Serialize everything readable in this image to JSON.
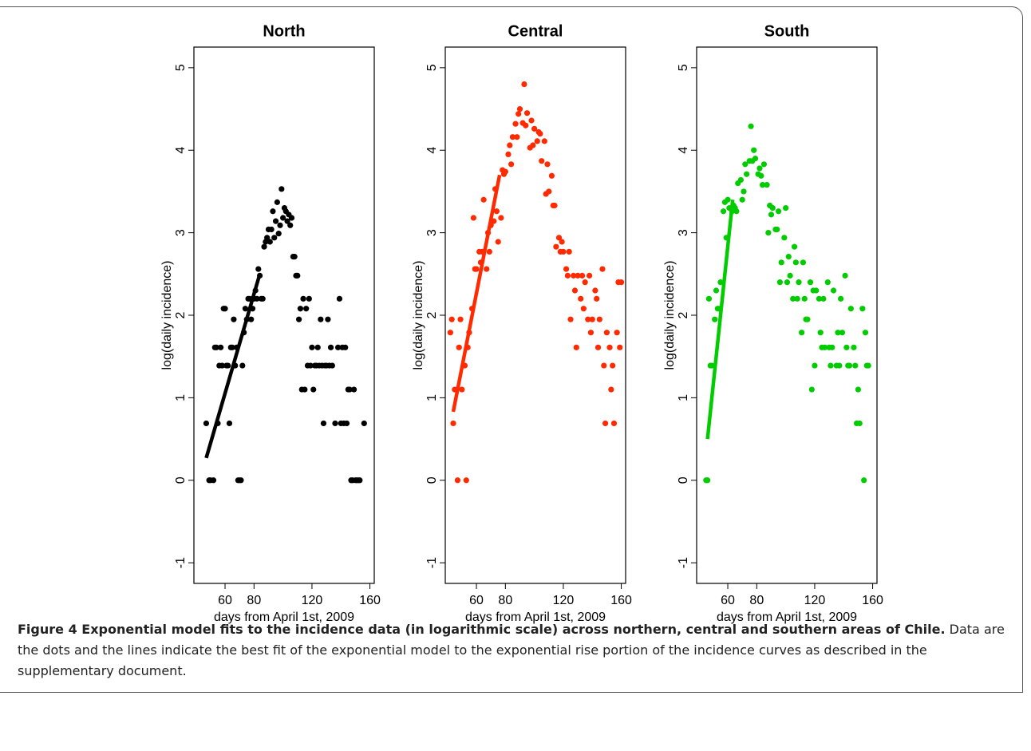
{
  "chart_data": [
    {
      "type": "scatter",
      "title": "North",
      "xlabel": "days from April 1st, 2009",
      "ylabel": "log(daily incidence)",
      "xlim": [
        38.5,
        163
      ],
      "ylim": [
        -1.25,
        5.25
      ],
      "xticks": [
        60,
        80,
        120,
        160
      ],
      "yticks": [
        -1,
        0,
        1,
        2,
        3,
        4,
        5
      ],
      "color": "#000000",
      "x": [
        47,
        49,
        50,
        52,
        53,
        54,
        55,
        56,
        57,
        58,
        59,
        60,
        61,
        62,
        63,
        64,
        65,
        66,
        67,
        68,
        69,
        70,
        71,
        72,
        73,
        74,
        75,
        76,
        77,
        78,
        79,
        80,
        81,
        82,
        83,
        84,
        85,
        86,
        87,
        88,
        89,
        90,
        91,
        92,
        93,
        94,
        95,
        96,
        97,
        98,
        99,
        100,
        101,
        102,
        103,
        104,
        105,
        106,
        107,
        108,
        109,
        110,
        111,
        112,
        113,
        114,
        115,
        116,
        117,
        118,
        119,
        120,
        121,
        122,
        123,
        124,
        125,
        126,
        127,
        128,
        129,
        130,
        131,
        132,
        133,
        134,
        136,
        138,
        139,
        140,
        141,
        142,
        143,
        144,
        145,
        146,
        147,
        148,
        149,
        150,
        151,
        152,
        153,
        156
      ],
      "values": [
        0.69,
        0,
        0,
        0,
        1.61,
        1.61,
        0.69,
        1.39,
        1.61,
        1.39,
        2.08,
        2.08,
        1.39,
        1.39,
        0.69,
        1.61,
        1.61,
        1.95,
        1.39,
        1.61,
        0,
        0,
        0,
        1.39,
        1.79,
        2.08,
        1.95,
        2.2,
        2.2,
        1.95,
        2.08,
        2.2,
        2.3,
        2.2,
        2.56,
        2.48,
        2.2,
        2.2,
        2.83,
        2.89,
        2.94,
        3.04,
        2.89,
        3.04,
        3.26,
        2.94,
        3.14,
        3.37,
        2.99,
        3.09,
        3.53,
        3.18,
        3.3,
        3.26,
        3.14,
        3.22,
        3.09,
        3.18,
        2.71,
        2.71,
        2.48,
        2.48,
        1.95,
        2.08,
        1.1,
        2.2,
        1.1,
        2.08,
        1.39,
        2.2,
        1.39,
        1.61,
        1.1,
        1.39,
        1.39,
        1.61,
        1.39,
        1.95,
        1.39,
        0.69,
        1.39,
        1.39,
        1.95,
        1.39,
        1.61,
        1.39,
        0.69,
        1.61,
        2.2,
        0.69,
        1.61,
        0.69,
        1.61,
        0.69,
        1.1,
        1.1,
        0,
        0,
        1.1,
        0,
        0,
        0,
        0,
        0.69
      ],
      "fit": {
        "x": [
          47,
          84
        ],
        "values": [
          0.27,
          2.5
        ]
      }
    },
    {
      "type": "scatter",
      "title": "Central",
      "xlabel": "days from April 1st, 2009",
      "ylabel": "log(daily incidence)",
      "xlim": [
        38.5,
        163
      ],
      "ylim": [
        -1.25,
        5.25
      ],
      "xticks": [
        60,
        80,
        120,
        160
      ],
      "yticks": [
        -1,
        0,
        1,
        2,
        3,
        4,
        5
      ],
      "color": "#ff2a00",
      "x": [
        42,
        43,
        44,
        45,
        47,
        48,
        49,
        50,
        52,
        53,
        54,
        55,
        57,
        58,
        59,
        60,
        62,
        63,
        64,
        65,
        67,
        68,
        69,
        70,
        72,
        73,
        74,
        75,
        77,
        78,
        79,
        80,
        82,
        83,
        84,
        85,
        87,
        88,
        89,
        90,
        92,
        93,
        94,
        95,
        97,
        98,
        99,
        100,
        102,
        103,
        104,
        105,
        107,
        108,
        109,
        110,
        112,
        113,
        114,
        115,
        117,
        118,
        119,
        120,
        122,
        123,
        124,
        125,
        127,
        128,
        129,
        130,
        132,
        133,
        134,
        135,
        137,
        138,
        139,
        140,
        142,
        143,
        144,
        145,
        147,
        148,
        149,
        150,
        152,
        153,
        154,
        155,
        157,
        158,
        159,
        160
      ],
      "values": [
        1.79,
        1.95,
        0.69,
        1.1,
        0,
        1.61,
        1.95,
        1.1,
        1.39,
        0,
        1.61,
        1.79,
        2.08,
        3.18,
        2.56,
        2.56,
        2.77,
        2.64,
        2.77,
        3.4,
        2.56,
        3.0,
        2.77,
        3.09,
        3.14,
        3.53,
        3.26,
        2.89,
        3.18,
        3.76,
        3.71,
        3.74,
        3.95,
        4.06,
        3.83,
        4.16,
        4.32,
        4.16,
        4.44,
        4.5,
        4.33,
        4.8,
        4.3,
        4.45,
        4.03,
        4.36,
        4.06,
        4.26,
        4.11,
        4.22,
        4.2,
        3.87,
        4.11,
        3.47,
        3.83,
        3.5,
        3.69,
        3.33,
        3.33,
        2.83,
        2.94,
        2.77,
        2.89,
        2.77,
        2.56,
        2.48,
        2.77,
        1.95,
        2.48,
        2.3,
        1.61,
        2.48,
        2.2,
        2.48,
        2.08,
        2.4,
        1.95,
        2.48,
        1.79,
        1.95,
        2.3,
        2.2,
        1.61,
        1.95,
        2.56,
        1.39,
        0.69,
        1.79,
        1.61,
        1.1,
        1.39,
        0.69,
        1.79,
        2.4,
        1.61,
        2.4
      ],
      "fit": {
        "x": [
          44,
          76
        ],
        "values": [
          0.83,
          3.7
        ]
      }
    },
    {
      "type": "scatter",
      "title": "South",
      "xlabel": "days from April 1st, 2009",
      "ylabel": "log(daily incidence)",
      "xlim": [
        38.5,
        163
      ],
      "ylim": [
        -1.25,
        5.25
      ],
      "xticks": [
        60,
        80,
        120,
        160
      ],
      "yticks": [
        -1,
        0,
        1,
        2,
        3,
        4,
        5
      ],
      "color": "#00cc00",
      "x": [
        45,
        46,
        47,
        48,
        49,
        51,
        52,
        53,
        54,
        55,
        57,
        58,
        59,
        60,
        61,
        63,
        64,
        65,
        66,
        67,
        69,
        70,
        71,
        72,
        73,
        75,
        76,
        77,
        78,
        79,
        81,
        82,
        83,
        84,
        85,
        87,
        88,
        89,
        90,
        91,
        93,
        94,
        95,
        96,
        97,
        99,
        100,
        101,
        102,
        103,
        105,
        106,
        107,
        108,
        109,
        111,
        112,
        113,
        114,
        115,
        117,
        118,
        119,
        120,
        121,
        123,
        124,
        125,
        126,
        127,
        129,
        130,
        131,
        132,
        133,
        135,
        136,
        137,
        138,
        139,
        141,
        142,
        143,
        144,
        145,
        147,
        148,
        149,
        150,
        151,
        153,
        154,
        155,
        156,
        157
      ],
      "values": [
        0,
        0,
        2.2,
        1.39,
        1.39,
        1.95,
        2.3,
        2.08,
        2.08,
        2.4,
        3.26,
        3.37,
        2.94,
        3.4,
        3.3,
        3.26,
        3.33,
        3.3,
        3.26,
        3.6,
        3.64,
        3.4,
        3.5,
        3.83,
        3.71,
        3.87,
        4.29,
        3.87,
        4.0,
        3.9,
        3.71,
        3.78,
        3.69,
        3.58,
        3.83,
        3.58,
        3.0,
        3.33,
        3.22,
        3.3,
        3.04,
        3.04,
        3.26,
        2.4,
        2.64,
        2.94,
        3.3,
        2.4,
        2.71,
        2.48,
        2.2,
        2.83,
        2.64,
        2.2,
        2.4,
        1.79,
        2.64,
        2.2,
        1.95,
        1.95,
        2.4,
        1.1,
        2.3,
        1.39,
        2.3,
        2.2,
        1.79,
        1.61,
        2.2,
        1.61,
        2.4,
        1.61,
        1.39,
        1.61,
        2.3,
        1.39,
        1.79,
        1.39,
        2.2,
        1.79,
        2.48,
        1.61,
        1.39,
        1.39,
        2.08,
        1.61,
        1.39,
        0.69,
        1.1,
        0.69,
        2.08,
        0,
        1.79,
        1.39,
        1.39
      ],
      "fit": {
        "x": [
          46,
          63.4
        ],
        "values": [
          0.5,
          3.4
        ]
      }
    }
  ],
  "caption": {
    "title": "Figure 4 Exponential model fits to the incidence data (in logarithmic scale) across northern, central and southern areas of Chile.",
    "text": "Data are the dots and the lines indicate the best fit of the exponential model to the exponential rise portion of the incidence curves as described in the supplementary document."
  }
}
